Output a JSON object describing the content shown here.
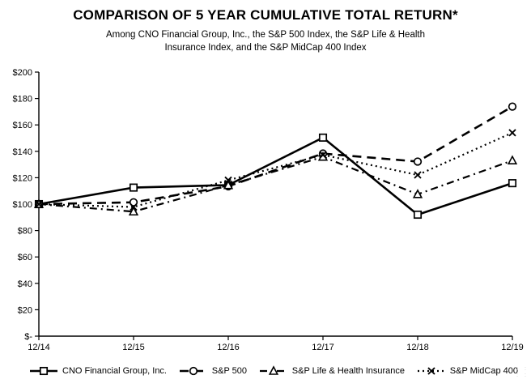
{
  "header": {
    "title": "COMPARISON OF 5 YEAR CUMULATIVE TOTAL RETURN*",
    "subtitle_line1": "Among CNO Financial Group, Inc., the S&P 500 Index, the S&P Life & Health",
    "subtitle_line2": "Insurance Index, and the S&P MidCap 400 Index"
  },
  "chart_data": {
    "type": "line",
    "title": "COMPARISON OF 5 YEAR CUMULATIVE TOTAL RETURN*",
    "categories": [
      "12/14",
      "12/15",
      "12/16",
      "12/17",
      "12/18",
      "12/19"
    ],
    "series": [
      {
        "name": "CNO Financial Group, Inc.",
        "values": [
          100.0,
          112.53,
          114.42,
          150.38,
          92.02,
          115.87
        ],
        "line_style": "solid",
        "marker": "square"
      },
      {
        "name": "S&P 500",
        "values": [
          100.0,
          101.38,
          113.51,
          138.29,
          132.23,
          173.86
        ],
        "line_style": "dashed",
        "marker": "circle"
      },
      {
        "name": "S&P Life & Health Insurance",
        "values": [
          100.0,
          94.33,
          114.3,
          135.78,
          107.47,
          133.02
        ],
        "line_style": "dash-dot",
        "marker": "triangle"
      },
      {
        "name": "S&P MidCap 400",
        "values": [
          100.0,
          97.82,
          118.11,
          137.3,
          122.08,
          154.07
        ],
        "line_style": "dotted",
        "marker": "x"
      }
    ],
    "xlabel": "",
    "ylabel": "",
    "ylim": [
      0,
      200
    ],
    "y_ticks": [
      {
        "value": 0,
        "label": "$-"
      },
      {
        "value": 20,
        "label": "$20"
      },
      {
        "value": 40,
        "label": "$40"
      },
      {
        "value": 60,
        "label": "$60"
      },
      {
        "value": 80,
        "label": "$80"
      },
      {
        "value": 100,
        "label": "$100"
      },
      {
        "value": 120,
        "label": "$120"
      },
      {
        "value": 140,
        "label": "$140"
      },
      {
        "value": 160,
        "label": "$160"
      },
      {
        "value": 180,
        "label": "$180"
      },
      {
        "value": 200,
        "label": "$200"
      }
    ],
    "grid": false,
    "legend_position": "bottom",
    "line_color": "#000000",
    "background_color": "#ffffff"
  },
  "artifacts": {
    "row1": ": :",
    "row2": ": :"
  }
}
